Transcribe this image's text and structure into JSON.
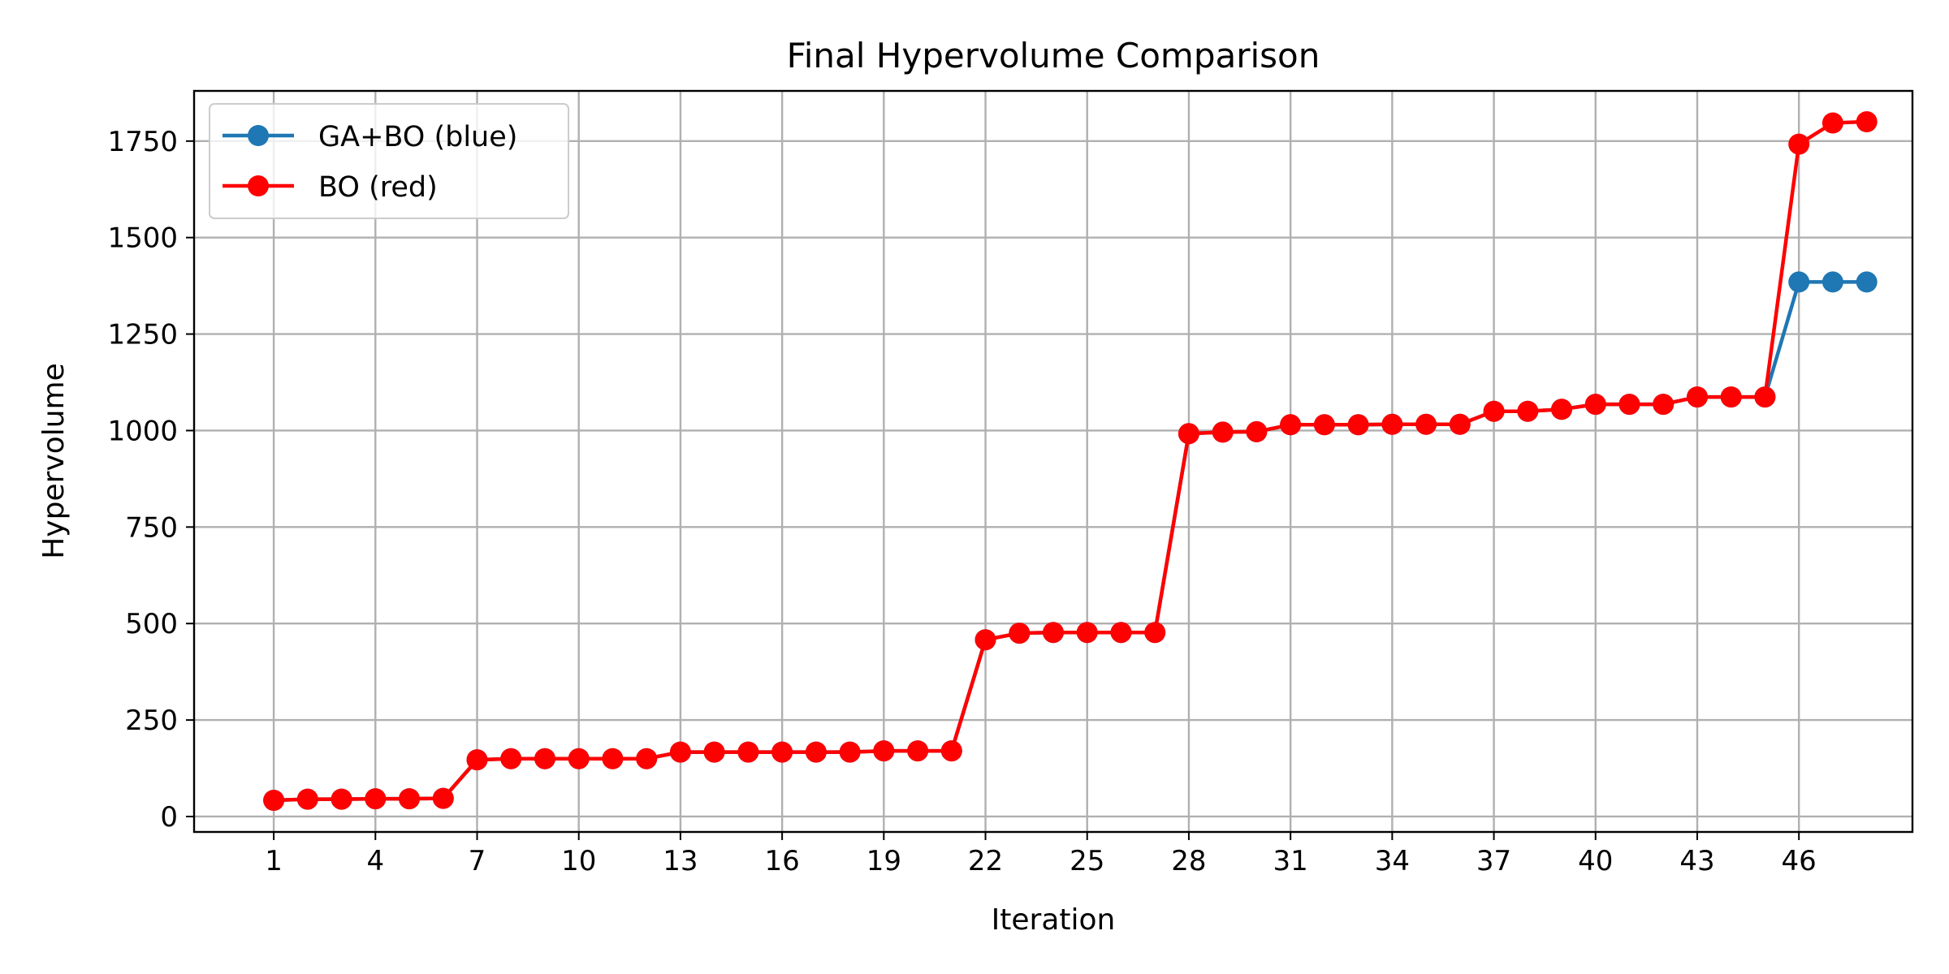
{
  "chart_data": {
    "type": "line",
    "title": "Final Hypervolume Comparison",
    "xlabel": "Iteration",
    "ylabel": "Hypervolume",
    "xlim": [
      -1.35,
      49.35
    ],
    "ylim": [
      -40,
      1880
    ],
    "xticks": [
      1,
      4,
      7,
      10,
      13,
      16,
      19,
      22,
      25,
      28,
      31,
      34,
      37,
      40,
      43,
      46
    ],
    "yticks": [
      0,
      250,
      500,
      750,
      1000,
      1250,
      1500,
      1750
    ],
    "grid": true,
    "legend_position": "top-left",
    "x": [
      1,
      2,
      3,
      4,
      5,
      6,
      7,
      8,
      9,
      10,
      11,
      12,
      13,
      14,
      15,
      16,
      17,
      18,
      19,
      20,
      21,
      22,
      23,
      24,
      25,
      26,
      27,
      28,
      29,
      30,
      31,
      32,
      33,
      34,
      35,
      36,
      37,
      38,
      39,
      40,
      41,
      42,
      43,
      44,
      45,
      46,
      47,
      48
    ],
    "series": [
      {
        "name": "GA+BO (blue)",
        "color": "#1f77b4",
        "values": [
          42,
          45,
          45,
          46,
          46,
          47,
          147,
          150,
          150,
          150,
          150,
          150,
          167,
          167,
          167,
          167,
          167,
          167,
          170,
          170,
          170,
          458,
          475,
          477,
          477,
          477,
          477,
          992,
          996,
          997,
          1015,
          1015,
          1015,
          1016,
          1016,
          1016,
          1050,
          1050,
          1055,
          1068,
          1068,
          1068,
          1087,
          1087,
          1087,
          1385,
          1385,
          1385
        ]
      },
      {
        "name": "BO (red)",
        "color": "#ff0000",
        "values": [
          42,
          45,
          45,
          46,
          46,
          47,
          147,
          150,
          150,
          150,
          150,
          150,
          167,
          167,
          167,
          167,
          167,
          167,
          170,
          170,
          170,
          458,
          475,
          477,
          477,
          477,
          477,
          992,
          996,
          997,
          1015,
          1015,
          1015,
          1016,
          1016,
          1016,
          1050,
          1050,
          1055,
          1068,
          1068,
          1068,
          1087,
          1087,
          1087,
          1742,
          1797,
          1800
        ]
      }
    ]
  }
}
